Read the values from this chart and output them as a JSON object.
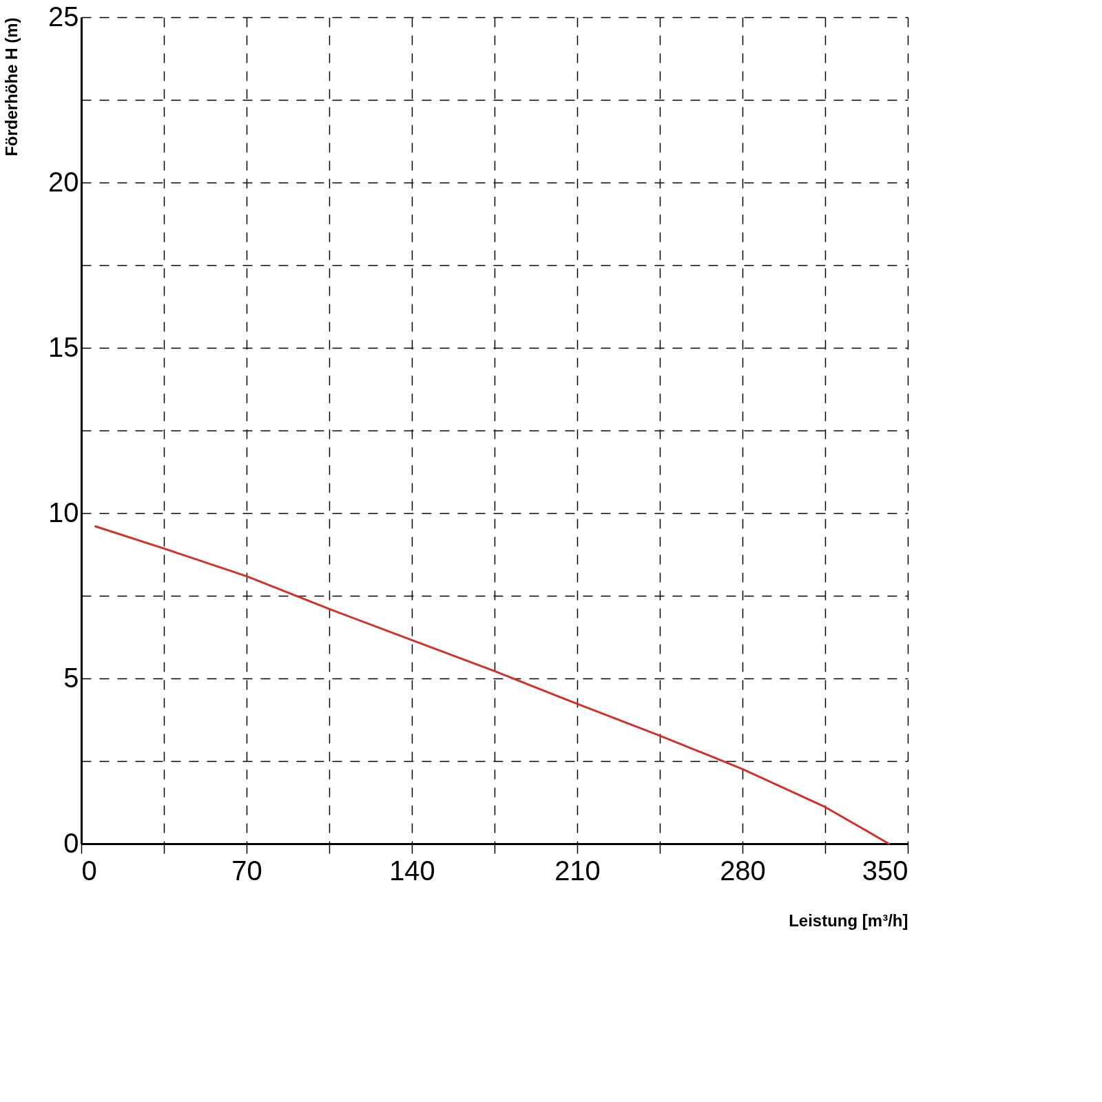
{
  "chart_data": {
    "type": "line",
    "xlabel": "Leistung [m³/h]",
    "ylabel": "Förderhöhe   H (m)",
    "x": [
      6,
      35,
      70,
      105,
      140,
      175,
      210,
      245,
      280,
      315,
      342
    ],
    "series": [
      {
        "color": "#d0312d",
        "values": [
          9.6,
          8.93,
          8.09,
          7.1,
          6.16,
          5.22,
          4.23,
          3.27,
          2.26,
          1.11,
          0
        ]
      }
    ],
    "xlim": [
      0,
      350
    ],
    "ylim": [
      0,
      25
    ],
    "xticks": [
      0,
      {
        "value": 35,
        "label": null
      },
      70,
      {
        "value": 105,
        "label": null
      },
      140,
      {
        "value": 175,
        "label": null
      },
      210,
      {
        "value": 245,
        "label": null
      },
      280,
      {
        "value": 315,
        "label": null
      },
      350
    ],
    "yticks": [
      0,
      {
        "value": 2.5,
        "label": null
      },
      5,
      {
        "value": 7.5,
        "label": null
      },
      10,
      {
        "value": 12.5,
        "label": null
      },
      15,
      {
        "value": 17.5,
        "label": null
      },
      20,
      {
        "value": 22.5,
        "label": null
      },
      25
    ],
    "grid": true
  }
}
